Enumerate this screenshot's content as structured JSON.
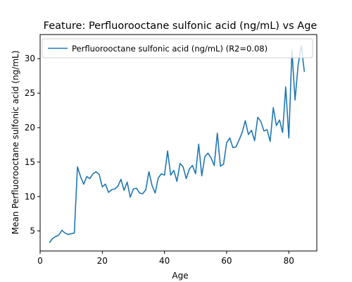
{
  "chart_data": {
    "type": "line",
    "title": "Feature: Perfluorooctane sulfonic acid (ng/mL) vs Age",
    "xlabel": "Age",
    "ylabel": "Mean Perfluorooctane sulfonic acid (ng/mL)",
    "xlim": [
      0,
      89
    ],
    "ylim": [
      2.1,
      33.5
    ],
    "xticks": [
      0,
      20,
      40,
      60,
      80
    ],
    "yticks": [
      5,
      10,
      15,
      20,
      25,
      30
    ],
    "grid": false,
    "legend_position": "top-left",
    "color": "#1f77b4",
    "series": [
      {
        "name": "Perfluorooctane sulfonic acid (ng/mL) (R2=0.08)",
        "x": [
          3,
          4,
          5,
          6,
          7,
          8,
          9,
          10,
          11,
          12,
          13,
          14,
          15,
          16,
          17,
          18,
          19,
          20,
          21,
          22,
          23,
          24,
          25,
          26,
          27,
          28,
          29,
          30,
          31,
          32,
          33,
          34,
          35,
          36,
          37,
          38,
          39,
          40,
          41,
          42,
          43,
          44,
          45,
          46,
          47,
          48,
          49,
          50,
          51,
          52,
          53,
          54,
          55,
          56,
          57,
          58,
          59,
          60,
          61,
          62,
          63,
          64,
          65,
          66,
          67,
          68,
          69,
          70,
          71,
          72,
          73,
          74,
          75,
          76,
          77,
          78,
          79,
          80,
          81,
          82,
          83,
          84,
          85
        ],
        "y": [
          3.3,
          3.9,
          4.2,
          4.4,
          5.1,
          4.7,
          4.5,
          4.6,
          4.7,
          14.3,
          12.9,
          11.8,
          12.9,
          12.6,
          13.3,
          13.6,
          13.2,
          11.4,
          11.8,
          10.6,
          11.0,
          11.1,
          11.5,
          12.5,
          10.9,
          12.1,
          9.9,
          11.1,
          11.2,
          10.5,
          10.4,
          11.0,
          13.6,
          11.6,
          10.5,
          12.7,
          13.3,
          13.1,
          16.6,
          13.1,
          13.8,
          12.2,
          14.8,
          14.3,
          12.6,
          14.0,
          14.5,
          13.3,
          17.6,
          13.0,
          15.8,
          16.3,
          15.6,
          14.5,
          19.2,
          14.4,
          14.7,
          17.8,
          18.5,
          17.1,
          17.2,
          18.2,
          19.3,
          21.0,
          19.0,
          19.6,
          18.1,
          21.5,
          20.9,
          19.5,
          19.7,
          18.0,
          22.9,
          20.3,
          21.1,
          19.3,
          25.9,
          18.5,
          31.2,
          24.0,
          29.1,
          31.9,
          28.1
        ]
      }
    ]
  }
}
